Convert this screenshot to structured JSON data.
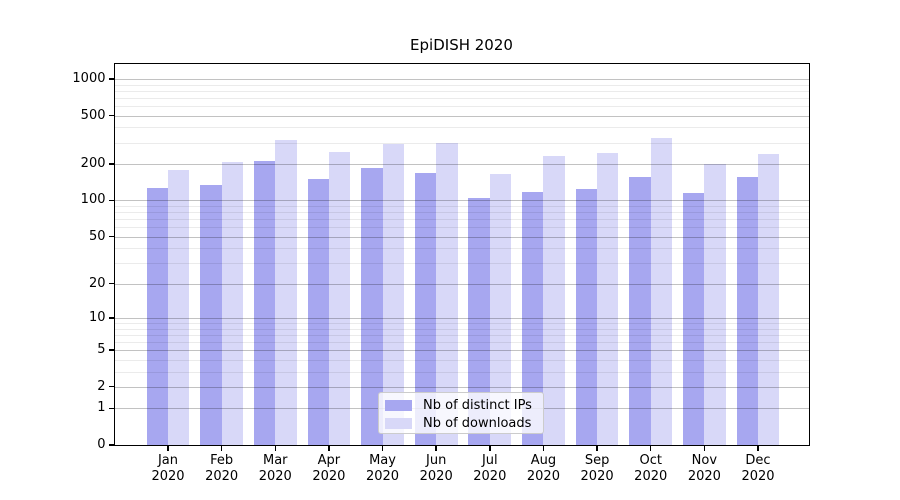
{
  "chart_data": {
    "type": "bar",
    "title": "EpiDISH 2020",
    "categories": [
      "Jan",
      "Feb",
      "Mar",
      "Apr",
      "May",
      "Jun",
      "Jul",
      "Aug",
      "Sep",
      "Oct",
      "Nov",
      "Dec"
    ],
    "category_year": "2020",
    "series": [
      {
        "name": "Nb of distinct IPs",
        "color": "#a7a7f0",
        "values": [
          126,
          134,
          212,
          151,
          186,
          168,
          105,
          118,
          125,
          157,
          116,
          157
        ]
      },
      {
        "name": "Nb of downloads",
        "color": "#d8d8f8",
        "values": [
          178,
          206,
          315,
          250,
          291,
          297,
          165,
          232,
          245,
          329,
          199,
          240
        ]
      }
    ],
    "yscale": "log1p",
    "ylabel": "",
    "xlabel": "",
    "y_major_ticks": [
      0,
      1,
      2,
      5,
      10,
      20,
      50,
      100,
      200,
      500,
      1000
    ],
    "y_minor_ticks": [
      3,
      4,
      6,
      7,
      8,
      9,
      30,
      40,
      60,
      70,
      80,
      90,
      300,
      400,
      600,
      700,
      800,
      900
    ],
    "ylim": [
      0,
      1350
    ],
    "grid": true,
    "legend_position": "bottom-center-inside"
  }
}
